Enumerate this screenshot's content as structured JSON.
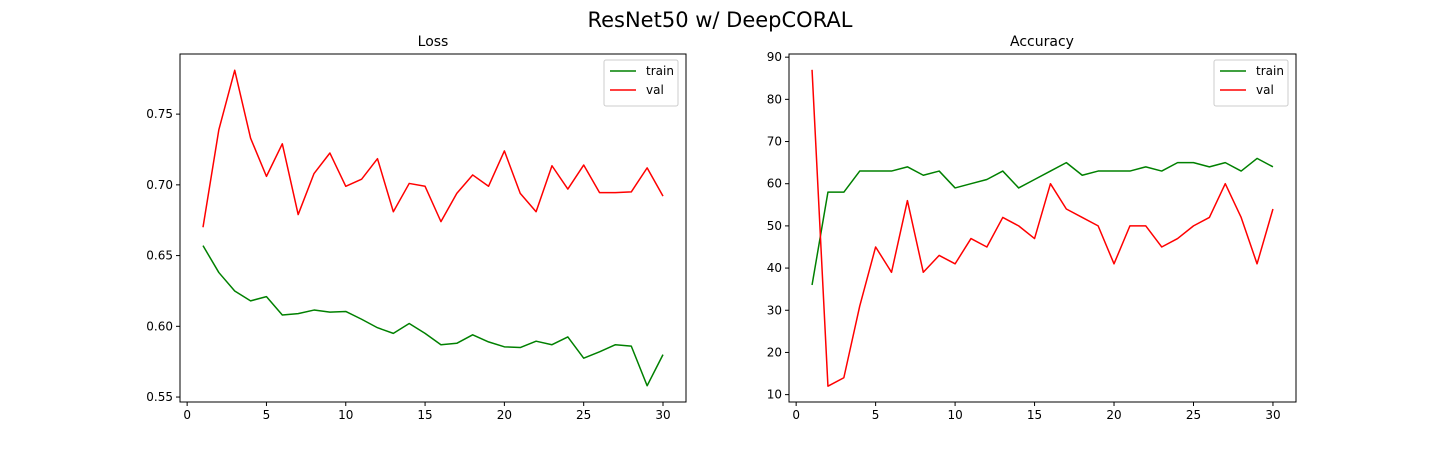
{
  "figure": {
    "title": "ResNet50 w/ DeepCORAL"
  },
  "chart_data": [
    {
      "type": "line",
      "title": "Loss",
      "xlabel": "",
      "ylabel": "",
      "xlim": [
        -0.45,
        31.45
      ],
      "ylim": [
        0.5465,
        0.7925
      ],
      "xticks": [
        0,
        5,
        10,
        15,
        20,
        25,
        30
      ],
      "yticks": [
        0.55,
        0.6,
        0.65,
        0.7,
        0.75
      ],
      "ytick_labels": [
        "0.55",
        "0.60",
        "0.65",
        "0.70",
        "0.75"
      ],
      "grid": false,
      "legend": "top-right",
      "x": [
        1,
        2,
        3,
        4,
        5,
        6,
        7,
        8,
        9,
        10,
        11,
        12,
        13,
        14,
        15,
        16,
        17,
        18,
        19,
        20,
        21,
        22,
        23,
        24,
        25,
        26,
        27,
        28,
        29,
        30
      ],
      "series": [
        {
          "name": "train",
          "color": "#008000",
          "values": [
            0.657,
            0.638,
            0.625,
            0.618,
            0.621,
            0.608,
            0.609,
            0.6115,
            0.61,
            0.6105,
            0.605,
            0.599,
            0.595,
            0.602,
            0.595,
            0.587,
            0.588,
            0.594,
            0.589,
            0.5855,
            0.585,
            0.5895,
            0.587,
            0.5925,
            0.5775,
            0.582,
            0.587,
            0.586,
            0.558,
            0.58
          ]
        },
        {
          "name": "val",
          "color": "#ff0000",
          "values": [
            0.67,
            0.739,
            0.781,
            0.733,
            0.706,
            0.729,
            0.679,
            0.708,
            0.7225,
            0.699,
            0.704,
            0.7185,
            0.681,
            0.701,
            0.699,
            0.674,
            0.694,
            0.707,
            0.699,
            0.724,
            0.694,
            0.681,
            0.7135,
            0.697,
            0.714,
            0.6945,
            0.6945,
            0.695,
            0.712,
            0.692
          ]
        }
      ]
    },
    {
      "type": "line",
      "title": "Accuracy",
      "xlabel": "",
      "ylabel": "",
      "xlim": [
        -0.45,
        31.45
      ],
      "ylim": [
        8.25,
        90.75
      ],
      "xticks": [
        0,
        5,
        10,
        15,
        20,
        25,
        30
      ],
      "yticks": [
        10,
        20,
        30,
        40,
        50,
        60,
        70,
        80,
        90
      ],
      "ytick_labels": [
        "10",
        "20",
        "30",
        "40",
        "50",
        "60",
        "70",
        "80",
        "90"
      ],
      "grid": false,
      "legend": "top-right",
      "x": [
        1,
        2,
        3,
        4,
        5,
        6,
        7,
        8,
        9,
        10,
        11,
        12,
        13,
        14,
        15,
        16,
        17,
        18,
        19,
        20,
        21,
        22,
        23,
        24,
        25,
        26,
        27,
        28,
        29,
        30
      ],
      "series": [
        {
          "name": "train",
          "color": "#008000",
          "values": [
            36,
            58,
            58,
            63,
            63,
            63,
            64,
            62,
            63,
            59,
            60,
            61,
            63,
            59,
            61,
            63,
            65,
            62,
            63,
            63,
            63,
            64,
            63,
            65,
            65,
            64,
            65,
            63,
            66,
            64
          ]
        },
        {
          "name": "val",
          "color": "#ff0000",
          "values": [
            87,
            12,
            14,
            31,
            45,
            39,
            56,
            39,
            43,
            41,
            47,
            45,
            52,
            50,
            47,
            60,
            54,
            52,
            50,
            41,
            50,
            50,
            45,
            47,
            50,
            52,
            60,
            52,
            41,
            54
          ]
        }
      ]
    }
  ]
}
